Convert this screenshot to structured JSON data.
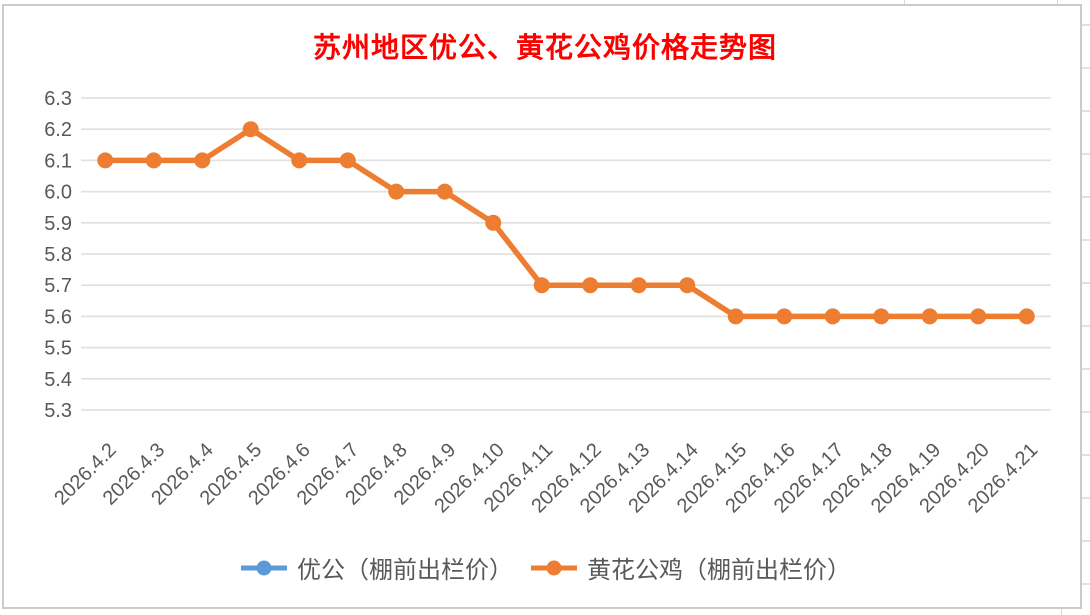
{
  "chart": {
    "title": {
      "text": "苏州地区优公、黄花公鸡价格走势图",
      "color": "#FF0000"
    },
    "legend": [
      {
        "label": "优公（棚前出栏价）",
        "color": "#5B9BD5"
      },
      {
        "label": "黄花公鸡（棚前出栏价）",
        "color": "#ED7D31"
      }
    ]
  },
  "chart_data": {
    "type": "line",
    "title": "苏州地区优公、黄花公鸡价格走势图",
    "categories": [
      "2026.4.2",
      "2026.4.3",
      "2026.4.4",
      "2026.4.5",
      "2026.4.6",
      "2026.4.7",
      "2026.4.8",
      "2026.4.9",
      "2026.4.10",
      "2026.4.11",
      "2026.4.12",
      "2026.4.13",
      "2026.4.14",
      "2026.4.15",
      "2026.4.16",
      "2026.4.17",
      "2026.4.18",
      "2026.4.19",
      "2026.4.20",
      "2026.4.21"
    ],
    "series": [
      {
        "name": "优公（棚前出栏价）",
        "color": "#5B9BD5",
        "values": [],
        "note": "legend entry only — no line visible in plot area (covered by the orange series)"
      },
      {
        "name": "黄花公鸡（棚前出栏价）",
        "color": "#ED7D31",
        "values": [
          6.1,
          6.1,
          6.1,
          6.2,
          6.1,
          6.1,
          6.0,
          6.0,
          5.9,
          5.7,
          5.7,
          5.7,
          5.7,
          5.6,
          5.6,
          5.6,
          5.6,
          5.6,
          5.6,
          5.6
        ]
      }
    ],
    "ylim": [
      5.3,
      6.3
    ],
    "ytick_step": 0.1,
    "yticks": [
      "6.3",
      "6.2",
      "6.1",
      "6.0",
      "5.9",
      "5.8",
      "5.7",
      "5.6",
      "5.5",
      "5.4",
      "5.3"
    ],
    "xlabel": "",
    "ylabel": "",
    "grid": "horizontal",
    "legend_position": "bottom",
    "marker": "circle",
    "x_tick_rotation_deg": -45,
    "axis_label_color": "#595959",
    "gridline_color": "#E2E2E2"
  }
}
